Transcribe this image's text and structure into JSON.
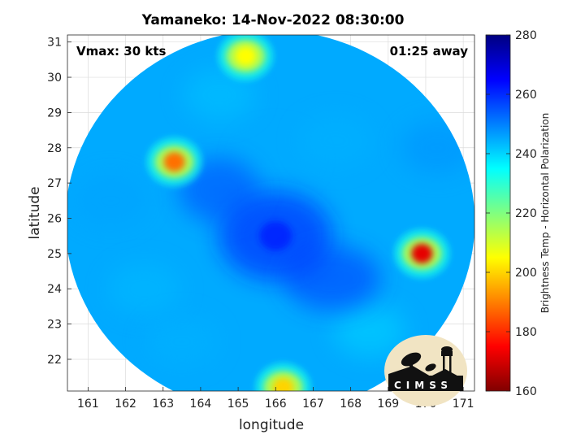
{
  "chart_data": {
    "type": "heatmap",
    "title": "Yamaneko: 14-Nov-2022 08:30:00",
    "xlabel": "longitude",
    "ylabel": "latitude",
    "xlim": [
      160.45,
      171.3
    ],
    "ylim": [
      21.1,
      31.2
    ],
    "xticks": [
      "161",
      "162",
      "163",
      "164",
      "165",
      "166",
      "167",
      "168",
      "169",
      "170",
      "171"
    ],
    "yticks": [
      "22",
      "23",
      "24",
      "25",
      "26",
      "27",
      "28",
      "29",
      "30",
      "31"
    ],
    "grid": true,
    "annotations": {
      "left": "Vmax: 30 kts",
      "right": "01:25 away"
    },
    "colorbar": {
      "label": "Brightness Temp - Horizontal Polarization",
      "range": [
        160,
        280
      ],
      "ticks": [
        "160",
        "180",
        "200",
        "220",
        "240",
        "260",
        "280"
      ],
      "colormap": "jet"
    },
    "swath": {
      "center_lon": 165.85,
      "center_lat": 25.9,
      "edge_temp_approx": 245
    },
    "features": [
      {
        "lon": 169.9,
        "lat": 25.0,
        "temp": 172,
        "desc": "convective core"
      },
      {
        "lon": 163.3,
        "lat": 27.6,
        "temp": 188
      },
      {
        "lon": 165.2,
        "lat": 30.6,
        "temp": 205
      },
      {
        "lon": 166.2,
        "lat": 21.2,
        "temp": 200
      },
      {
        "lon": 166.0,
        "lat": 25.5,
        "temp": 262,
        "desc": "cold center"
      }
    ],
    "logo": "CIMSS"
  }
}
